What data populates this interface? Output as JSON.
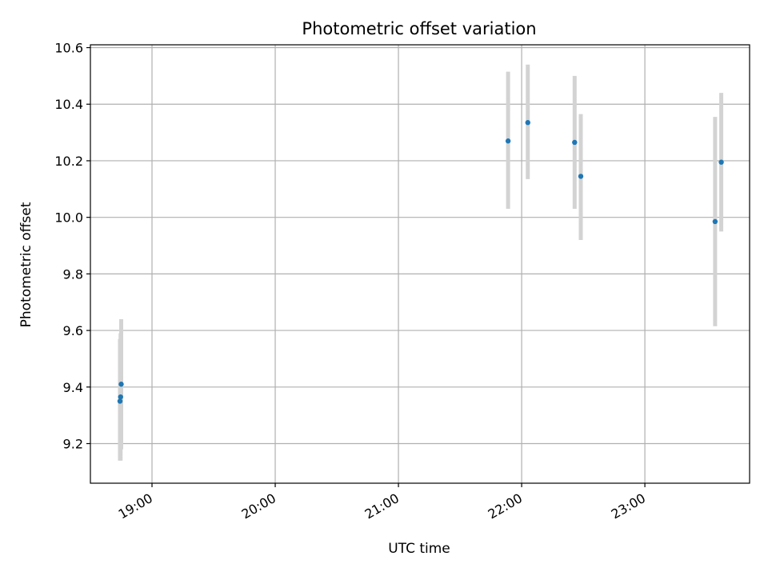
{
  "chart_data": {
    "type": "scatter",
    "title": "Photometric offset variation",
    "xlabel": "UTC time",
    "ylabel": "Photometric offset",
    "x_unit": "hours UTC",
    "xlim": [
      18.5,
      23.85
    ],
    "ylim": [
      9.06,
      10.61
    ],
    "grid": true,
    "x_ticks": [
      {
        "value": 19,
        "label": "19:00"
      },
      {
        "value": 20,
        "label": "20:00"
      },
      {
        "value": 21,
        "label": "21:00"
      },
      {
        "value": 22,
        "label": "22:00"
      },
      {
        "value": 23,
        "label": "23:00"
      }
    ],
    "y_ticks": [
      {
        "value": 9.2,
        "label": "9.2"
      },
      {
        "value": 9.4,
        "label": "9.4"
      },
      {
        "value": 9.6,
        "label": "9.6"
      },
      {
        "value": 9.8,
        "label": "9.8"
      },
      {
        "value": 10.0,
        "label": "10.0"
      },
      {
        "value": 10.2,
        "label": "10.2"
      },
      {
        "value": 10.4,
        "label": "10.4"
      },
      {
        "value": 10.6,
        "label": "10.6"
      }
    ],
    "series": [
      {
        "name": "offset",
        "marker_color": "#1f77b4",
        "error_color": "#d3d3d3",
        "points": [
          {
            "x": 18.74,
            "y": 9.35,
            "err_low": 9.14,
            "err_high": 9.57
          },
          {
            "x": 18.745,
            "y": 9.365,
            "err_low": 9.14,
            "err_high": 9.59
          },
          {
            "x": 18.75,
            "y": 9.41,
            "err_low": 9.18,
            "err_high": 9.64
          },
          {
            "x": 21.89,
            "y": 10.27,
            "err_low": 10.03,
            "err_high": 10.515
          },
          {
            "x": 22.05,
            "y": 10.335,
            "err_low": 10.135,
            "err_high": 10.54
          },
          {
            "x": 22.43,
            "y": 10.265,
            "err_low": 10.03,
            "err_high": 10.5
          },
          {
            "x": 22.48,
            "y": 10.145,
            "err_low": 9.92,
            "err_high": 10.365
          },
          {
            "x": 23.57,
            "y": 9.985,
            "err_low": 9.615,
            "err_high": 10.355
          },
          {
            "x": 23.62,
            "y": 10.195,
            "err_low": 9.95,
            "err_high": 10.44
          }
        ]
      }
    ]
  }
}
